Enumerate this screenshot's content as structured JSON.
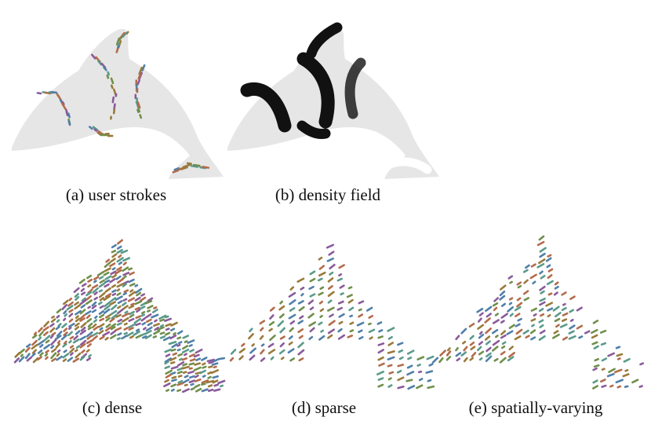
{
  "figure": {
    "captions": {
      "a": "(a) user strokes",
      "b": "(b) density field",
      "c": "(c) dense",
      "d": "(d) sparse",
      "e": "(e) spatially-varying"
    },
    "colors": {
      "silhouette": "#e6e6e6",
      "density_stroke": "#111111",
      "word_palette": [
        "#6f8f4a",
        "#8a5a9a",
        "#4f7fa8",
        "#b36b4a",
        "#5a9a8a",
        "#9a7a3a"
      ]
    }
  }
}
